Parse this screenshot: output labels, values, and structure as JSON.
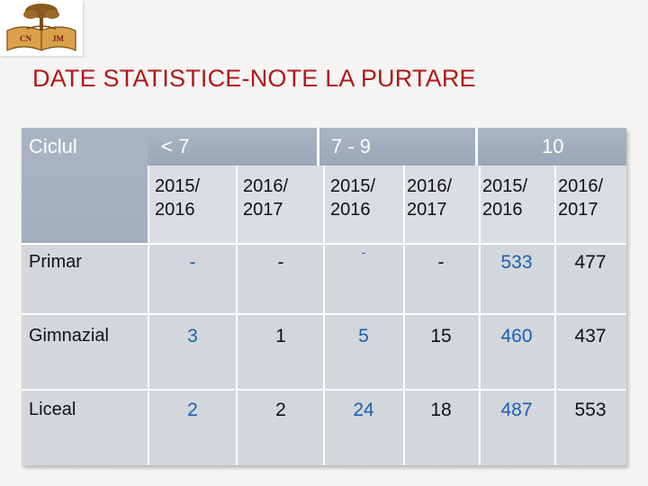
{
  "logo": {
    "left_text": "CN",
    "right_text": "JM"
  },
  "title": "DATE STATISTICE-NOTE LA PURTARE",
  "table": {
    "corner_label": "Ciclul",
    "groups": [
      "< 7",
      "7 - 9",
      "10"
    ],
    "years": [
      [
        "2015/",
        "2016"
      ],
      [
        "2016/",
        "2017"
      ],
      [
        "2015/",
        "2016"
      ],
      [
        "2016/",
        "2017"
      ],
      [
        "2015/",
        "2016"
      ],
      [
        "2016/",
        "2017"
      ]
    ],
    "rows": [
      {
        "label": "Primar",
        "values": [
          "-",
          "-",
          "-",
          "-",
          "533",
          "477"
        ]
      },
      {
        "label": "Gimnazial",
        "values": [
          "3",
          "1",
          "5",
          "15",
          "460",
          "437"
        ]
      },
      {
        "label": "Liceal",
        "values": [
          "2",
          "2",
          "24",
          "18",
          "487",
          "553"
        ]
      }
    ],
    "colors": {
      "header": "#9ea9bb",
      "title": "#b01818",
      "blue_value": "#1a5fb4",
      "body": "#d3d6db"
    }
  }
}
